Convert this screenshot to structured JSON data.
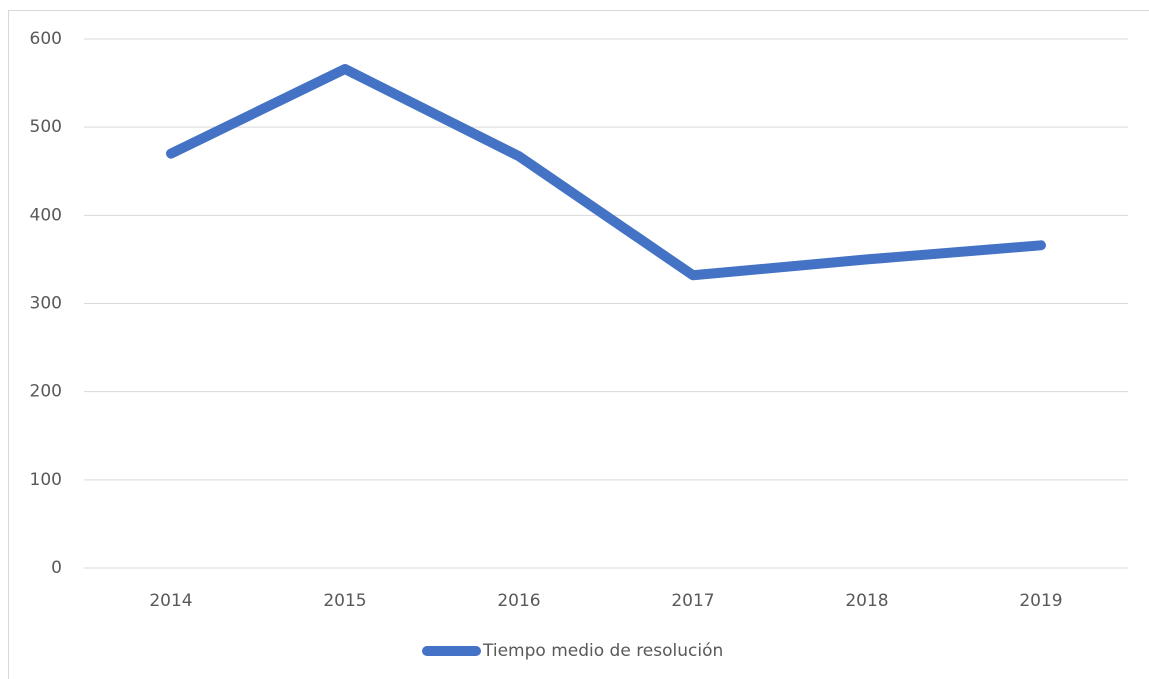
{
  "chart_data": {
    "type": "line",
    "categories": [
      "2014",
      "2015",
      "2016",
      "2017",
      "2018",
      "2019"
    ],
    "series": [
      {
        "name": "Tiempo medio de resolución",
        "color": "#4472c4",
        "values": [
          470,
          566,
          467,
          332,
          350,
          366
        ]
      }
    ],
    "ylim": [
      0,
      600
    ],
    "yticks": [
      0,
      100,
      200,
      300,
      400,
      500,
      600
    ],
    "grid": true,
    "legend": "bottom"
  }
}
